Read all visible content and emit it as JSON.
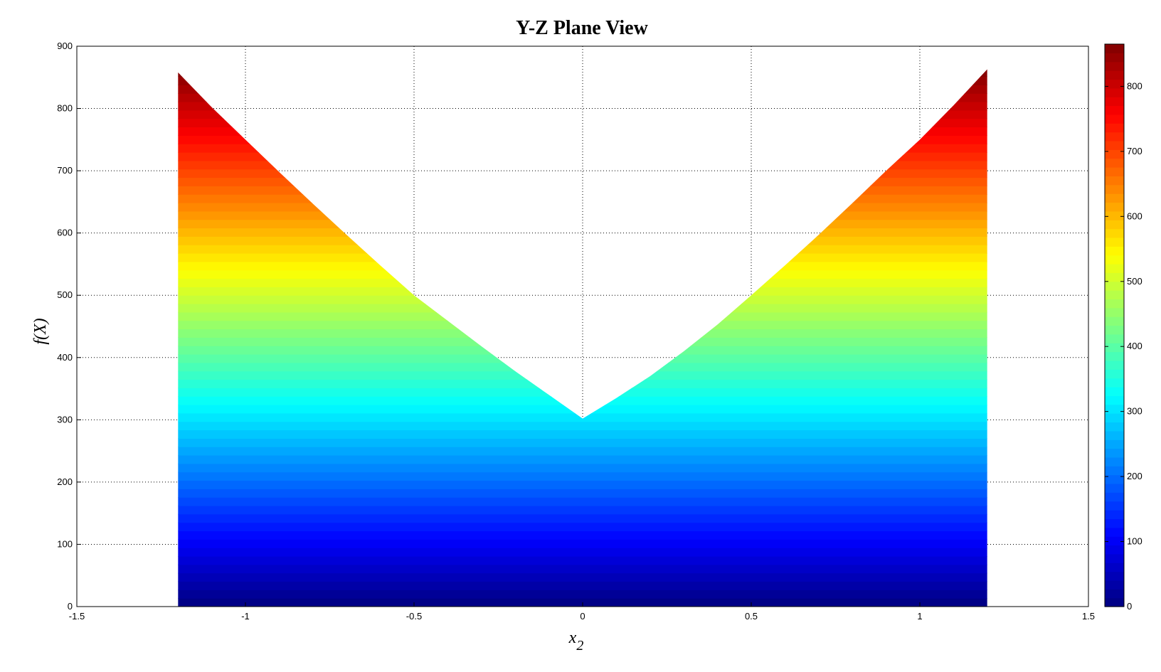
{
  "chart_data": {
    "type": "area",
    "title": "Y-Z Plane View",
    "xlabel": "x",
    "xlabel_subscript": "2",
    "ylabel": "f(X)",
    "xlim": [
      -1.5,
      1.5
    ],
    "ylim": [
      0,
      900
    ],
    "xticks": [
      "-1.5",
      "-1",
      "-0.5",
      "0",
      "0.5",
      "1",
      "1.5"
    ],
    "yticks": [
      "0",
      "100",
      "200",
      "300",
      "400",
      "500",
      "600",
      "700",
      "800",
      "900"
    ],
    "grid": true,
    "colormap": "jet",
    "fill_colored_by": "f(X)",
    "x": [
      -1.2,
      -1.1,
      -1.0,
      -0.9,
      -0.8,
      -0.7,
      -0.6,
      -0.5,
      -0.4,
      -0.3,
      -0.2,
      -0.1,
      0,
      0.1,
      0.2,
      0.3,
      0.4,
      0.5,
      0.6,
      0.7,
      0.8,
      0.9,
      1.0,
      1.1,
      1.2
    ],
    "y": [
      858,
      802,
      750,
      698,
      647,
      597,
      548,
      500,
      459,
      418,
      378,
      340,
      302,
      335,
      370,
      410,
      453,
      500,
      548,
      597,
      648,
      700,
      750,
      805,
      863
    ],
    "colorbar": {
      "range": [
        0,
        865
      ],
      "ticks": [
        "0",
        "100",
        "200",
        "300",
        "400",
        "500",
        "600",
        "700",
        "800"
      ],
      "placement": "right"
    }
  }
}
